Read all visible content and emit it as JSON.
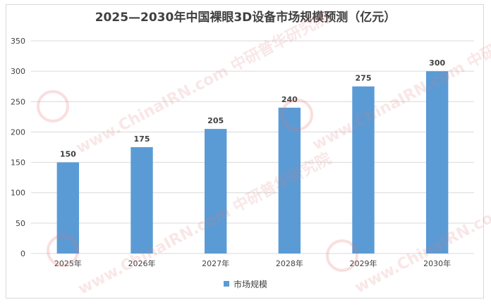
{
  "chart_data": {
    "type": "bar",
    "title": "2025—2030年中国裸眼3D设备市场规模预测（亿元）",
    "categories": [
      "2025年",
      "2026年",
      "2027年",
      "2028年",
      "2029年",
      "2030年"
    ],
    "series": [
      {
        "name": "市场规模",
        "values": [
          150,
          175,
          205,
          240,
          275,
          300
        ]
      }
    ],
    "yticks": [
      "0",
      "50",
      "100",
      "150",
      "200",
      "250",
      "300",
      "350"
    ],
    "ylim": [
      0,
      350
    ],
    "grid": true,
    "legend_position": "bottom",
    "bar_color": "#5b9bd5"
  },
  "watermark": {
    "text": "www.ChinaIRN.com 中研普华研究院",
    "logo": "CIRI"
  }
}
